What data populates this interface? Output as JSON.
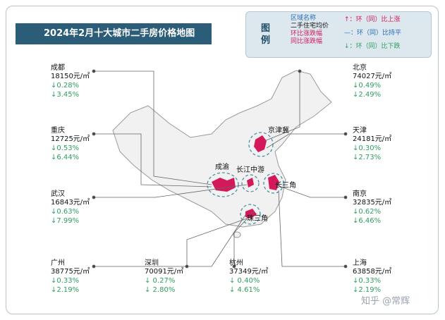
{
  "header": {
    "title": "2024年2月十大城市二手房价格地图"
  },
  "legend": {
    "title": "图例",
    "items": [
      "区域名称",
      "二手住宅均价",
      "环比涨跌幅",
      "同比涨跌幅"
    ],
    "symbols": [
      "↑：环（同）比上涨",
      "—：环（同）比持平",
      "↓：环（同）比下跌"
    ]
  },
  "regions": [
    "京津冀",
    "成渝",
    "长江中游",
    "长三角",
    "珠三角"
  ],
  "cities": [
    {
      "name": "成都",
      "price": "18150元/㎡",
      "mom": "↓0.28%",
      "yoy": "↓3.45%"
    },
    {
      "name": "重庆",
      "price": "12725元/㎡",
      "mom": "↓0.53%",
      "yoy": "↓6.44%"
    },
    {
      "name": "武汉",
      "price": "16843元/㎡",
      "mom": "↓0.63%",
      "yoy": "↓7.99%"
    },
    {
      "name": "广州",
      "price": "38775元/㎡",
      "mom": "↓0.33%",
      "yoy": "↓2.19%"
    },
    {
      "name": "深圳",
      "price": "70091元/㎡",
      "mom": "↓ 0.27%",
      "yoy": "↓ 2.80%"
    },
    {
      "name": "杭州",
      "price": "37349元/㎡",
      "mom": "↓ 0.40%",
      "yoy": "↓ 4.61%"
    },
    {
      "name": "北京",
      "price": "74027元/㎡",
      "mom": "↓0.49%",
      "yoy": "↓2.49%"
    },
    {
      "name": "天津",
      "price": "24181元/㎡",
      "mom": "↓0.30%",
      "yoy": "↓2.73%"
    },
    {
      "name": "南京",
      "price": "32835元/㎡",
      "mom": "↓0.62%",
      "yoy": "↓6.46%"
    },
    {
      "name": "上海",
      "price": "63858元/㎡",
      "mom": "↓0.33%",
      "yoy": "↓2.19%"
    }
  ],
  "watermark": "知乎 @常辉"
}
